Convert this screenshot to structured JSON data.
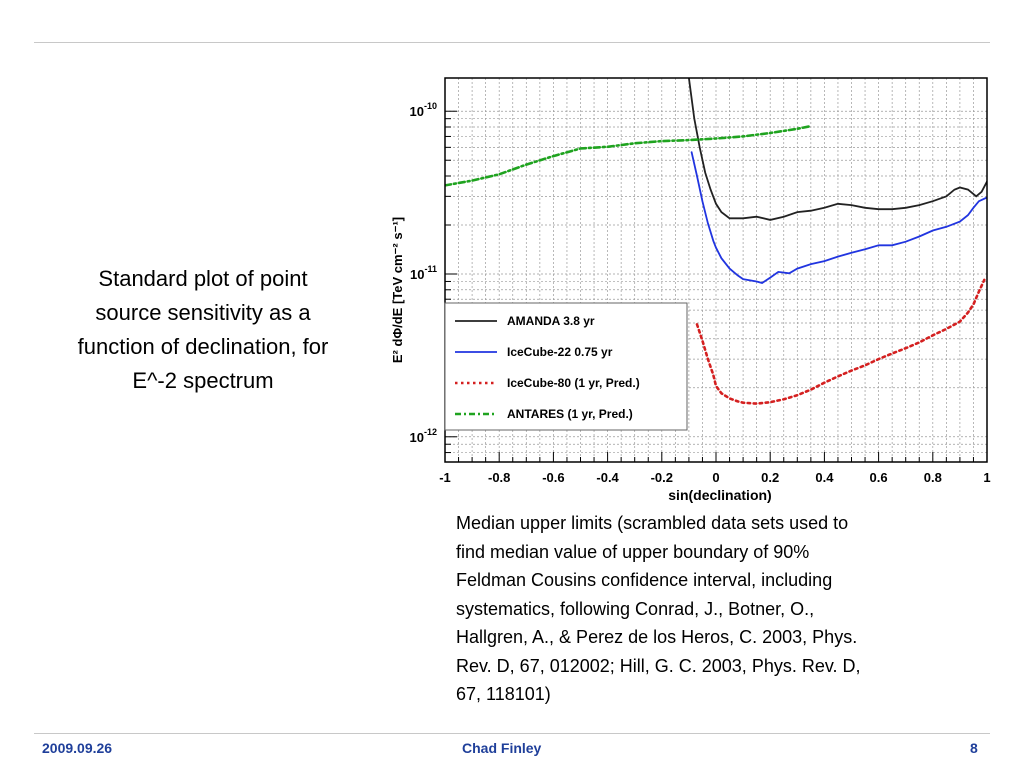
{
  "slide": {
    "left_caption": "Standard plot of point\nsource sensitivity as a\nfunction of declination, for\nE^-2 spectrum",
    "right_caption": "Median upper limits (scrambled data sets used to\nfind median value of upper boundary of 90%\nFeldman Cousins confidence interval, including\nsystematics, following Conrad, J., Botner, O.,\nHallgren, A., & Perez de los Heros, C. 2003, Phys.\nRev. D, 67, 012002; Hill, G. C. 2003, Phys. Rev. D,\n67, 118101)",
    "footer": {
      "date": "2009.09.26",
      "author": "Chad Finley",
      "page": "8"
    },
    "footer_color": "#1f3f9a"
  },
  "chart_data": {
    "type": "line",
    "title": "",
    "xlabel": "sin(declination)",
    "ylabel": "E² dΦ/dE [TeV cm⁻² s⁻¹]",
    "xlim": [
      -1,
      1
    ],
    "ylim": [
      7e-13,
      1.6e-10
    ],
    "yscale": "log",
    "grid": true,
    "legend_position": "bottom-left",
    "x_ticks": [
      "-1",
      "-0.8",
      "-0.6",
      "-0.4",
      "-0.2",
      "0",
      "0.2",
      "0.4",
      "0.6",
      "0.8",
      "1"
    ],
    "y_ticks": [
      {
        "base": "10",
        "exp": "-12",
        "value": 1e-12
      },
      {
        "base": "10",
        "exp": "-11",
        "value": 1e-11
      },
      {
        "base": "10",
        "exp": "-10",
        "value": 1e-10
      }
    ],
    "series": [
      {
        "name": "AMANDA  3.8 yr",
        "color": "#222222",
        "style": "solid",
        "x": [
          -0.1,
          -0.08,
          -0.06,
          -0.04,
          -0.02,
          0.0,
          0.02,
          0.05,
          0.1,
          0.15,
          0.2,
          0.25,
          0.3,
          0.35,
          0.4,
          0.45,
          0.5,
          0.55,
          0.6,
          0.65,
          0.7,
          0.75,
          0.8,
          0.85,
          0.88,
          0.9,
          0.93,
          0.96,
          0.98,
          1.0
        ],
        "y": [
          1.6e-10,
          9e-11,
          6e-11,
          4.2e-11,
          3.3e-11,
          2.7e-11,
          2.4e-11,
          2.2e-11,
          2.2e-11,
          2.25e-11,
          2.15e-11,
          2.25e-11,
          2.4e-11,
          2.45e-11,
          2.55e-11,
          2.7e-11,
          2.65e-11,
          2.55e-11,
          2.5e-11,
          2.5e-11,
          2.55e-11,
          2.65e-11,
          2.8e-11,
          3e-11,
          3.3e-11,
          3.4e-11,
          3.3e-11,
          3e-11,
          3.2e-11,
          3.7e-11
        ]
      },
      {
        "name": "IceCube-22   0.75 yr",
        "color": "#2135e0",
        "style": "solid",
        "x": [
          -0.09,
          -0.07,
          -0.05,
          -0.03,
          -0.01,
          0.0,
          0.02,
          0.05,
          0.08,
          0.1,
          0.15,
          0.17,
          0.2,
          0.23,
          0.27,
          0.3,
          0.35,
          0.4,
          0.45,
          0.5,
          0.55,
          0.6,
          0.65,
          0.7,
          0.75,
          0.8,
          0.85,
          0.9,
          0.93,
          0.95,
          0.97,
          1.0
        ],
        "y": [
          5.6e-11,
          4e-11,
          2.8e-11,
          2.05e-11,
          1.6e-11,
          1.45e-11,
          1.25e-11,
          1.08e-11,
          9.8e-12,
          9.3e-12,
          9e-12,
          8.8e-12,
          9.5e-12,
          1.03e-11,
          1.01e-11,
          1.08e-11,
          1.15e-11,
          1.2e-11,
          1.28e-11,
          1.35e-11,
          1.42e-11,
          1.5e-11,
          1.5e-11,
          1.58e-11,
          1.7e-11,
          1.85e-11,
          1.95e-11,
          2.1e-11,
          2.3e-11,
          2.55e-11,
          2.8e-11,
          2.95e-11
        ]
      },
      {
        "name": "IceCube-80 (1 yr, Pred.)",
        "color": "#d42020",
        "style": "dotted",
        "x": [
          -0.07,
          -0.05,
          -0.03,
          -0.01,
          0.0,
          0.02,
          0.05,
          0.08,
          0.1,
          0.15,
          0.2,
          0.25,
          0.3,
          0.35,
          0.4,
          0.45,
          0.5,
          0.55,
          0.6,
          0.65,
          0.7,
          0.75,
          0.8,
          0.85,
          0.9,
          0.93,
          0.95,
          0.97,
          0.99
        ],
        "y": [
          4.9e-12,
          3.9e-12,
          3e-12,
          2.4e-12,
          2.05e-12,
          1.85e-12,
          1.72e-12,
          1.65e-12,
          1.62e-12,
          1.6e-12,
          1.63e-12,
          1.7e-12,
          1.8e-12,
          1.95e-12,
          2.15e-12,
          2.35e-12,
          2.55e-12,
          2.75e-12,
          3e-12,
          3.25e-12,
          3.5e-12,
          3.8e-12,
          4.2e-12,
          4.6e-12,
          5.1e-12,
          5.8e-12,
          6.5e-12,
          7.8e-12,
          9.2e-12
        ]
      },
      {
        "name": "ANTARES (1 yr, Pred.)",
        "color": "#1fa31f",
        "style": "dashdot",
        "x": [
          -1.0,
          -0.9,
          -0.8,
          -0.7,
          -0.6,
          -0.5,
          -0.4,
          -0.3,
          -0.2,
          -0.1,
          0.0,
          0.1,
          0.2,
          0.3,
          0.35
        ],
        "y": [
          3.5e-11,
          3.75e-11,
          4.1e-11,
          4.7e-11,
          5.3e-11,
          5.9e-11,
          6.05e-11,
          6.35e-11,
          6.55e-11,
          6.65e-11,
          6.8e-11,
          7e-11,
          7.35e-11,
          7.8e-11,
          8.1e-11
        ]
      }
    ]
  }
}
